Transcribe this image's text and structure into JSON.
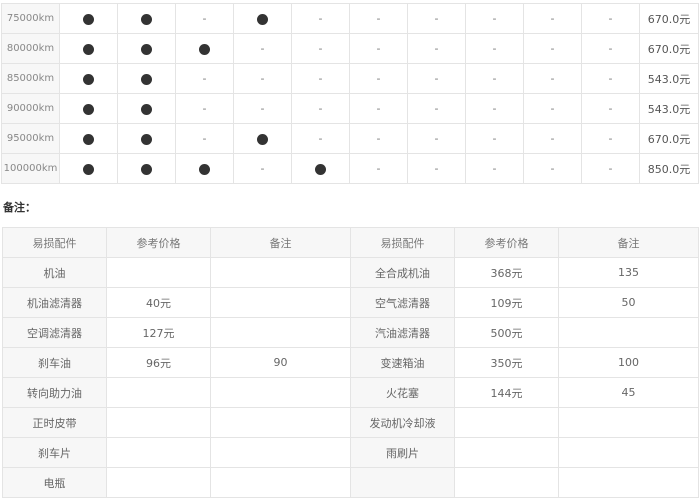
{
  "schedule": {
    "rows": [
      {
        "mileage": "75000km",
        "marks": [
          true,
          true,
          false,
          true,
          false,
          false,
          false,
          false,
          false,
          false
        ],
        "price": "670.0元"
      },
      {
        "mileage": "80000km",
        "marks": [
          true,
          true,
          true,
          false,
          false,
          false,
          false,
          false,
          false,
          false
        ],
        "price": "670.0元"
      },
      {
        "mileage": "85000km",
        "marks": [
          true,
          true,
          false,
          false,
          false,
          false,
          false,
          false,
          false,
          false
        ],
        "price": "543.0元"
      },
      {
        "mileage": "90000km",
        "marks": [
          true,
          true,
          false,
          false,
          false,
          false,
          false,
          false,
          false,
          false
        ],
        "price": "543.0元"
      },
      {
        "mileage": "95000km",
        "marks": [
          true,
          true,
          false,
          true,
          false,
          false,
          false,
          false,
          false,
          false
        ],
        "price": "670.0元"
      },
      {
        "mileage": "100000km",
        "marks": [
          true,
          true,
          true,
          false,
          true,
          false,
          false,
          false,
          false,
          false
        ],
        "price": "850.0元"
      }
    ],
    "dash": "-"
  },
  "note_label": "备注：",
  "parts": {
    "headers": [
      "易损配件",
      "参考价格",
      "备注",
      "易损配件",
      "参考价格",
      "备注"
    ],
    "rows": [
      [
        "机油",
        "",
        "",
        "全合成机油",
        "368元",
        "135"
      ],
      [
        "机油滤清器",
        "40元",
        "",
        "空气滤清器",
        "109元",
        "50"
      ],
      [
        "空调滤清器",
        "127元",
        "",
        "汽油滤清器",
        "500元",
        ""
      ],
      [
        "刹车油",
        "96元",
        "90",
        "变速箱油",
        "350元",
        "100"
      ],
      [
        "转向助力油",
        "",
        "",
        "火花塞",
        "144元",
        "45"
      ],
      [
        "正时皮带",
        "",
        "",
        "发动机冷却液",
        "",
        ""
      ],
      [
        "刹车片",
        "",
        "",
        "雨刷片",
        "",
        ""
      ],
      [
        "电瓶",
        "",
        "",
        "",
        "",
        ""
      ]
    ]
  }
}
